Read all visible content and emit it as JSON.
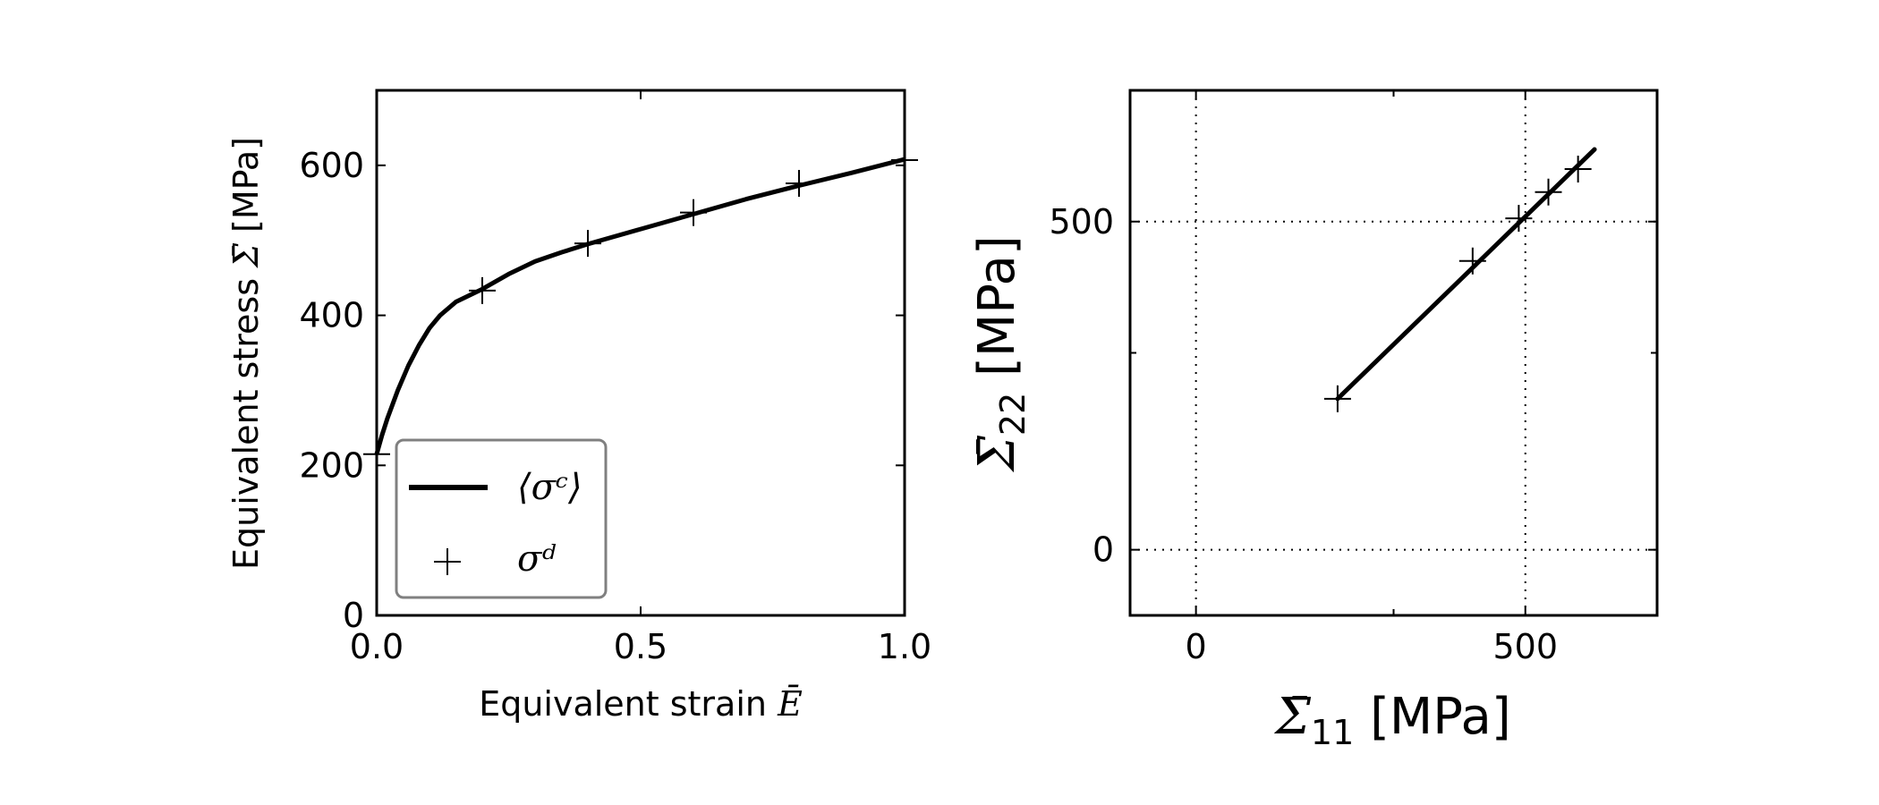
{
  "chart_data": [
    {
      "type": "line",
      "xlabel_prefix": "Equivalent strain ",
      "xlabel_symbol": "Ē",
      "ylabel_prefix": "Equivalent stress ",
      "ylabel_symbol": "Σ̄",
      "ylabel_suffix": " [MPa]",
      "xlim": [
        0.0,
        1.0
      ],
      "ylim": [
        0,
        700
      ],
      "xticks": [
        0.0,
        0.5,
        1.0
      ],
      "xtick_labels": [
        "0.0",
        "0.5",
        "1.0"
      ],
      "yticks": [
        0,
        200,
        400,
        600
      ],
      "ytick_labels": [
        "0",
        "200",
        "400",
        "600"
      ],
      "grid": false,
      "legend_position": "lower-left",
      "series": [
        {
          "name": "⟨σᶜ⟩",
          "style": "solid line",
          "x": [
            0.0,
            0.01,
            0.02,
            0.04,
            0.06,
            0.08,
            0.1,
            0.12,
            0.15,
            0.2,
            0.25,
            0.3,
            0.35,
            0.4,
            0.5,
            0.6,
            0.7,
            0.8,
            0.9,
            1.0
          ],
          "y": [
            215,
            240,
            262,
            300,
            333,
            360,
            383,
            400,
            418,
            435,
            455,
            472,
            484,
            495,
            515,
            535,
            555,
            573,
            590,
            608
          ]
        },
        {
          "name": "σᵈ",
          "style": "plus markers",
          "x": [
            0.0,
            0.2,
            0.4,
            0.6,
            0.8,
            1.0
          ],
          "y": [
            215,
            433,
            496,
            537,
            576,
            607
          ]
        }
      ]
    },
    {
      "type": "scatter",
      "xlabel_symbol": "Σ̄",
      "xlabel_sub": "11",
      "xlabel_suffix": " [MPa]",
      "ylabel_symbol": "Σ̄",
      "ylabel_sub": "22",
      "ylabel_suffix": " [MPa]",
      "xlim": [
        -100,
        700
      ],
      "ylim": [
        -100,
        700
      ],
      "xticks": [
        0,
        500
      ],
      "xtick_labels": [
        "0",
        "500"
      ],
      "yticks": [
        0,
        500
      ],
      "ytick_labels": [
        "0",
        "500"
      ],
      "minor_ticks": [
        300
      ],
      "grid": true,
      "grid_lines_at": [
        0,
        500
      ],
      "series": [
        {
          "style": "solid line",
          "x": [
            215,
            605
          ],
          "y": [
            230,
            610
          ]
        },
        {
          "style": "plus markers",
          "x": [
            215,
            420,
            490,
            535,
            580
          ],
          "y": [
            230,
            440,
            505,
            545,
            580
          ]
        }
      ]
    }
  ]
}
